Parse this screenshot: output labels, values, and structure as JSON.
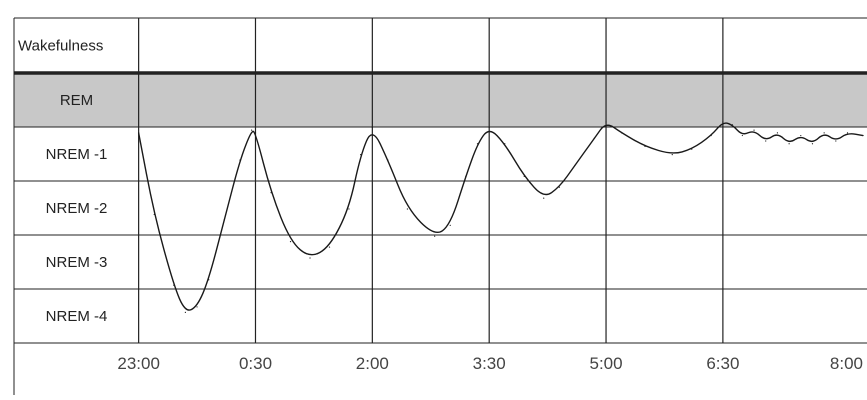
{
  "chart_data": {
    "type": "line",
    "title": "",
    "xlabel": "",
    "ylabel": "",
    "y_categories": [
      "Wakefulness",
      "REM",
      "NREM -1",
      "NREM -2",
      "NREM -3",
      "NREM -4"
    ],
    "x_tick_labels": [
      "23:00",
      "0:30",
      "2:00",
      "3:30",
      "5:00",
      "6:30",
      "8:00"
    ],
    "x_tick_hours": [
      23.0,
      24.5,
      26.0,
      27.5,
      29.0,
      30.5,
      32.0
    ],
    "xlim_hours": [
      21.4,
      32.35
    ],
    "grid": true,
    "legend": "none",
    "shaded_band": "REM",
    "series": [
      {
        "color": "#1a1a1a",
        "points_hours_depth": [
          [
            23.0,
            1.1
          ],
          [
            23.2,
            2.6
          ],
          [
            23.45,
            3.9
          ],
          [
            23.6,
            4.4
          ],
          [
            23.75,
            4.3
          ],
          [
            23.9,
            3.8
          ],
          [
            24.1,
            2.7
          ],
          [
            24.3,
            1.6
          ],
          [
            24.45,
            1.05
          ],
          [
            24.5,
            1.1
          ],
          [
            24.7,
            2.2
          ],
          [
            24.95,
            3.1
          ],
          [
            25.2,
            3.4
          ],
          [
            25.45,
            3.2
          ],
          [
            25.7,
            2.5
          ],
          [
            25.85,
            1.5
          ],
          [
            26.0,
            1.0
          ],
          [
            26.2,
            1.6
          ],
          [
            26.45,
            2.5
          ],
          [
            26.8,
            3.0
          ],
          [
            27.0,
            2.8
          ],
          [
            27.2,
            1.9
          ],
          [
            27.35,
            1.3
          ],
          [
            27.5,
            1.0
          ],
          [
            27.7,
            1.3
          ],
          [
            27.95,
            1.9
          ],
          [
            28.2,
            2.3
          ],
          [
            28.4,
            2.1
          ],
          [
            28.6,
            1.7
          ],
          [
            28.85,
            1.2
          ],
          [
            29.0,
            0.9
          ],
          [
            29.2,
            1.1
          ],
          [
            29.5,
            1.35
          ],
          [
            29.85,
            1.5
          ],
          [
            30.1,
            1.4
          ],
          [
            30.35,
            1.15
          ],
          [
            30.5,
            0.9
          ],
          [
            30.62,
            0.95
          ],
          [
            30.75,
            1.15
          ],
          [
            30.9,
            1.05
          ],
          [
            31.05,
            1.25
          ],
          [
            31.2,
            1.1
          ],
          [
            31.35,
            1.3
          ],
          [
            31.5,
            1.15
          ],
          [
            31.65,
            1.3
          ],
          [
            31.8,
            1.1
          ],
          [
            31.95,
            1.25
          ],
          [
            32.1,
            1.1
          ],
          [
            32.3,
            1.15
          ]
        ]
      }
    ]
  }
}
